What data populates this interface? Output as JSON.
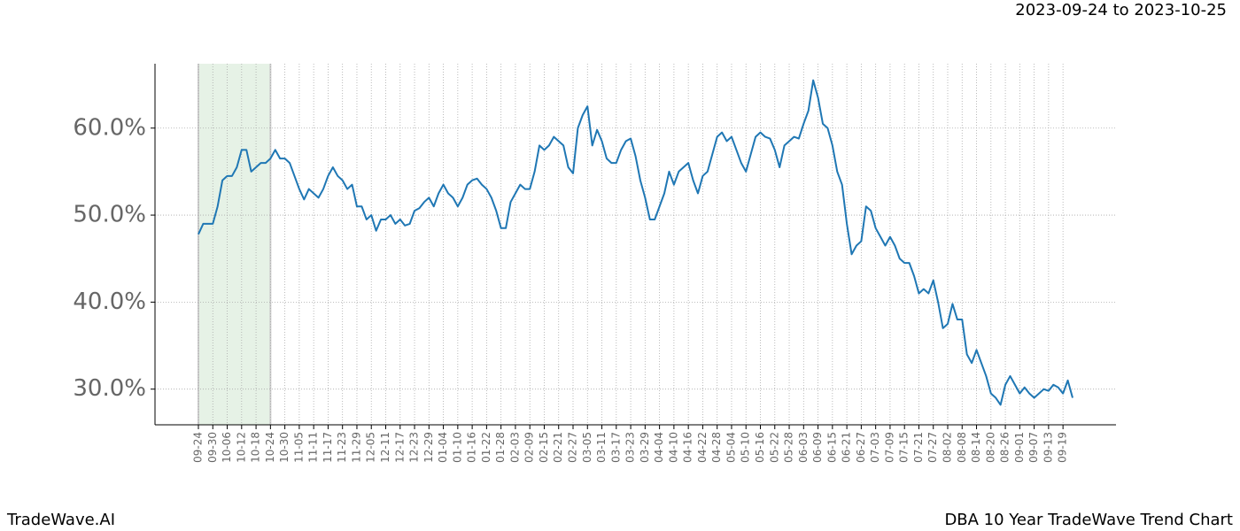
{
  "chart_data": {
    "type": "line",
    "title": "2023-09-24 to 2023-10-25",
    "footer_left": "TradeWave.AI",
    "footer_right": "DBA 10 Year TradeWave Trend Chart",
    "categories": [
      "09-24",
      null,
      null,
      "09-30",
      null,
      null,
      "10-06",
      null,
      null,
      "10-12",
      null,
      null,
      "10-18",
      null,
      null,
      "10-24",
      null,
      null,
      "10-30",
      null,
      null,
      "11-05",
      null,
      null,
      "11-11",
      null,
      null,
      "11-17",
      null,
      null,
      "11-23",
      null,
      null,
      "11-29",
      null,
      null,
      "12-05",
      null,
      null,
      "12-11",
      null,
      null,
      "12-17",
      null,
      null,
      "12-23",
      null,
      null,
      "12-29",
      null,
      null,
      "01-04",
      null,
      null,
      "01-10",
      null,
      null,
      "01-16",
      null,
      null,
      "01-22",
      null,
      null,
      "01-28",
      null,
      null,
      "02-03",
      null,
      null,
      "02-09",
      null,
      null,
      "02-15",
      null,
      null,
      "02-21",
      null,
      null,
      "02-27",
      null,
      null,
      "03-05",
      null,
      null,
      "03-11",
      null,
      null,
      "03-17",
      null,
      null,
      "03-23",
      null,
      null,
      "03-29",
      null,
      null,
      "04-04",
      null,
      null,
      "04-10",
      null,
      null,
      "04-16",
      null,
      null,
      "04-22",
      null,
      null,
      "04-28",
      null,
      null,
      "05-04",
      null,
      null,
      "05-10",
      null,
      null,
      "05-16",
      null,
      null,
      "05-22",
      null,
      null,
      "05-28",
      null,
      null,
      "06-03",
      null,
      null,
      "06-09",
      null,
      null,
      "06-15",
      null,
      null,
      "06-21",
      null,
      null,
      "06-27",
      null,
      null,
      "07-03",
      null,
      null,
      "07-09",
      null,
      null,
      "07-15",
      null,
      null,
      "07-21",
      null,
      null,
      "07-27",
      null,
      null,
      "08-02",
      null,
      null,
      "08-08",
      null,
      null,
      "08-14",
      null,
      null,
      "08-20",
      null,
      null,
      "08-26",
      null,
      null,
      "09-01",
      null,
      null,
      "09-07",
      null,
      null,
      "09-13",
      null,
      null,
      "09-19",
      null,
      null
    ],
    "series": [
      {
        "color": "#1f77b4",
        "values": [
          47.8,
          49,
          49,
          49,
          51,
          54,
          54.5,
          54.5,
          55.5,
          57.5,
          57.5,
          55,
          55.5,
          56,
          56,
          56.5,
          57.5,
          56.5,
          56.5,
          56,
          54.5,
          53,
          51.8,
          53,
          52.5,
          52,
          53,
          54.5,
          55.5,
          54.5,
          54,
          53,
          53.5,
          51,
          51,
          49.5,
          50,
          48.2,
          49.5,
          49.5,
          50,
          49,
          49.5,
          48.8,
          49,
          50.5,
          50.8,
          51.5,
          52,
          51,
          52.5,
          53.5,
          52.5,
          52,
          51,
          52,
          53.5,
          54,
          54.2,
          53.5,
          53,
          52,
          50.5,
          48.5,
          48.5,
          51.5,
          52.5,
          53.5,
          53,
          53,
          55,
          58,
          57.5,
          58,
          59,
          58.5,
          58,
          55.5,
          54.8,
          60,
          61.5,
          62.5,
          58,
          59.8,
          58.5,
          56.5,
          56,
          56,
          57.5,
          58.5,
          58.8,
          56.8,
          54,
          52,
          49.5,
          49.5,
          51,
          52.5,
          55,
          53.5,
          55,
          55.5,
          56,
          54,
          52.5,
          54.5,
          55,
          57,
          59,
          59.5,
          58.5,
          59,
          57.5,
          56,
          55,
          57,
          59,
          59.5,
          59,
          58.8,
          57.5,
          55.5,
          58,
          58.5,
          59,
          58.8,
          60.5,
          62,
          65.5,
          63.5,
          60.5,
          60,
          58,
          55,
          53.5,
          49,
          45.5,
          46.5,
          47,
          51,
          50.5,
          48.5,
          47.5,
          46.5,
          47.5,
          46.5,
          45,
          44.5,
          44.5,
          43,
          41,
          41.5,
          41,
          42.5,
          40,
          37,
          37.5,
          39.8,
          38,
          38,
          34,
          33,
          34.5,
          33,
          31.5,
          29.5,
          29,
          28.2,
          30.5,
          31.5,
          30.5,
          29.5,
          30.2,
          29.5,
          29,
          29.5,
          30,
          29.8,
          30.5,
          30.2,
          29.5,
          31,
          29
        ]
      }
    ],
    "ylim": [
      25.9,
      67.4
    ],
    "yticks": [
      {
        "value": 30,
        "label": "30.0%"
      },
      {
        "value": 40,
        "label": "40.0%"
      },
      {
        "value": 50,
        "label": "50.0%"
      },
      {
        "value": 60,
        "label": "60.0%"
      }
    ],
    "grid": true,
    "shade": [
      "09-24",
      "10-24"
    ],
    "shade_color": "#e6f2e6"
  }
}
